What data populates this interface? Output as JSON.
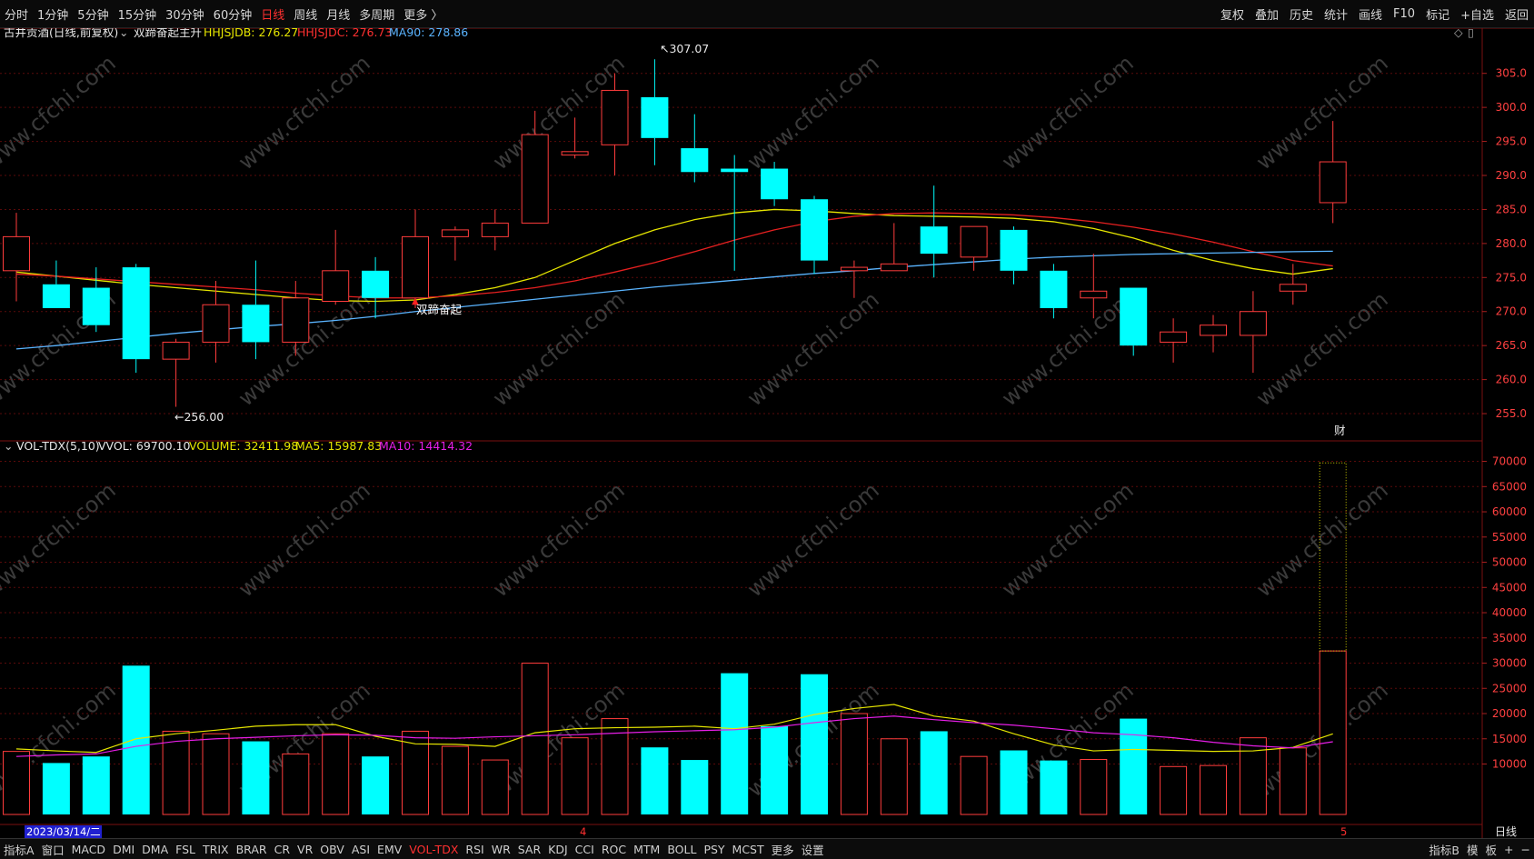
{
  "toolbar": {
    "periods": [
      "分时",
      "1分钟",
      "5分钟",
      "15分钟",
      "30分钟",
      "60分钟",
      "日线",
      "周线",
      "月线",
      "多周期",
      "更多 〉"
    ],
    "active_period": "日线",
    "right_items": [
      "复权",
      "叠加",
      "历史",
      "统计",
      "画线",
      "F10",
      "标记",
      "+自选",
      "返回"
    ]
  },
  "main_header": {
    "stock": "古井贡酒(日线,前复权)",
    "indicator": "双蹄奋起主升",
    "l1": "HHJSJDB: 276.27",
    "l2": "HHJSJDC: 276.73",
    "l3": "MA90: 278.86"
  },
  "vol_header": {
    "name": "VOL-TDX(5,10)",
    "vvol": "VVOL: 69700.10",
    "volume": "VOLUME: 32411.98",
    "ma5": "MA5: 15987.83",
    "ma10": "MA10: 14414.32"
  },
  "annotations": {
    "high": "307.07",
    "low": "256.00",
    "signal": "双蹄奋起",
    "cai": "财",
    "date": "2023/03/14/二",
    "m4": "4",
    "m5": "5",
    "period_label": "日线"
  },
  "bottom": {
    "items": [
      "指标A",
      "窗口",
      "MACD",
      "DMI",
      "DMA",
      "FSL",
      "TRIX",
      "BRAR",
      "CR",
      "VR",
      "OBV",
      "ASI",
      "EMV",
      "VOL-TDX",
      "RSI",
      "WR",
      "SAR",
      "KDJ",
      "CCI",
      "ROC",
      "MTM",
      "BOLL",
      "PSY",
      "MCST",
      "更多",
      "设置"
    ],
    "active": "VOL-TDX",
    "right_items": [
      "指标B",
      "模",
      "板",
      "+",
      "−"
    ]
  },
  "watermark": "www.cfchi.com",
  "chart_data": [
    {
      "type": "candlestick",
      "title": "古井贡酒(日线,前复权)",
      "ylim": [
        253,
        307.5
      ],
      "yticks": [
        255,
        260,
        265,
        270,
        275,
        280,
        285,
        290,
        295,
        300,
        305
      ],
      "candles": [
        {
          "o": 276,
          "c": 281,
          "h": 284.5,
          "l": 271.5
        },
        {
          "o": 274,
          "c": 270.5,
          "h": 277.5,
          "l": 270.5
        },
        {
          "o": 273.5,
          "c": 268,
          "h": 276.5,
          "l": 267
        },
        {
          "o": 276.5,
          "c": 263,
          "h": 277,
          "l": 261
        },
        {
          "o": 263,
          "c": 265.5,
          "h": 266,
          "l": 256
        },
        {
          "o": 265.5,
          "c": 271,
          "h": 274.5,
          "l": 262.5
        },
        {
          "o": 271,
          "c": 265.5,
          "h": 277.5,
          "l": 263
        },
        {
          "o": 265.5,
          "c": 272,
          "h": 274.5,
          "l": 263.5
        },
        {
          "o": 271.5,
          "c": 276,
          "h": 282,
          "l": 271
        },
        {
          "o": 276,
          "c": 272,
          "h": 278,
          "l": 269
        },
        {
          "o": 272,
          "c": 281,
          "h": 285,
          "l": 270.5
        },
        {
          "o": 281,
          "c": 282,
          "h": 282.5,
          "l": 277.5
        },
        {
          "o": 281,
          "c": 283,
          "h": 285,
          "l": 279
        },
        {
          "o": 283,
          "c": 296,
          "h": 299.5,
          "l": 283
        },
        {
          "o": 293,
          "c": 293.5,
          "h": 298.5,
          "l": 292.5
        },
        {
          "o": 294.5,
          "c": 302.5,
          "h": 305,
          "l": 290
        },
        {
          "o": 301.5,
          "c": 295.5,
          "h": 307.07,
          "l": 291.5
        },
        {
          "o": 294,
          "c": 290.5,
          "h": 299,
          "l": 289
        },
        {
          "o": 291,
          "c": 290.5,
          "h": 293,
          "l": 276
        },
        {
          "o": 291,
          "c": 286.5,
          "h": 292,
          "l": 285.5
        },
        {
          "o": 286.5,
          "c": 277.5,
          "h": 287,
          "l": 275.5
        },
        {
          "o": 276,
          "c": 276.5,
          "h": 277.5,
          "l": 272
        },
        {
          "o": 276,
          "c": 277,
          "h": 283,
          "l": 276
        },
        {
          "o": 282.5,
          "c": 278.5,
          "h": 288.5,
          "l": 275
        },
        {
          "o": 278,
          "c": 282.5,
          "h": 282.5,
          "l": 276
        },
        {
          "o": 282,
          "c": 276,
          "h": 282.5,
          "l": 274
        },
        {
          "o": 276,
          "c": 270.5,
          "h": 277,
          "l": 269
        },
        {
          "o": 272,
          "c": 273,
          "h": 278.5,
          "l": 269
        },
        {
          "o": 273.5,
          "c": 265,
          "h": 273.5,
          "l": 263.5
        },
        {
          "o": 265.5,
          "c": 267,
          "h": 269,
          "l": 262.5
        },
        {
          "o": 266.5,
          "c": 268,
          "h": 269.5,
          "l": 264
        },
        {
          "o": 266.5,
          "c": 270,
          "h": 273,
          "l": 261
        },
        {
          "o": 273,
          "c": 274,
          "h": 277,
          "l": 271
        },
        {
          "o": 286,
          "c": 292,
          "h": 298,
          "l": 283
        }
      ],
      "series": [
        {
          "name": "HHJSJDB",
          "color": "#e6e600",
          "values": [
            275.8,
            275.2,
            274.6,
            274,
            273.5,
            273,
            272.5,
            272,
            271.6,
            271.5,
            271.7,
            272.5,
            273.5,
            275,
            277.5,
            280,
            282,
            283.5,
            284.5,
            285,
            284.8,
            284.4,
            284.1,
            284,
            283.9,
            283.7,
            283.2,
            282.2,
            280.8,
            279,
            277.5,
            276.3,
            275.5,
            276.3
          ]
        },
        {
          "name": "HHJSJDC",
          "color": "#e62020",
          "values": [
            275.5,
            275.2,
            274.8,
            274.4,
            274,
            273.6,
            273.2,
            272.7,
            272.3,
            272,
            272,
            272.3,
            272.8,
            273.5,
            274.5,
            275.8,
            277.2,
            278.8,
            280.5,
            282,
            283.2,
            284,
            284.4,
            284.5,
            284.4,
            284.2,
            283.8,
            283.2,
            282.4,
            281.4,
            280.2,
            278.8,
            277.5,
            276.7
          ]
        },
        {
          "name": "MA90",
          "color": "#5ab4ff",
          "values": [
            264.5,
            265,
            265.6,
            266.2,
            266.8,
            267.3,
            267.8,
            268.2,
            268.7,
            269.3,
            270,
            270.6,
            271.2,
            271.8,
            272.4,
            273,
            273.6,
            274.1,
            274.6,
            275.1,
            275.6,
            276,
            276.5,
            276.9,
            277.3,
            277.7,
            278,
            278.2,
            278.4,
            278.5,
            278.6,
            278.7,
            278.8,
            278.86
          ]
        }
      ]
    },
    {
      "type": "bar",
      "title": "VOL-TDX(5,10)",
      "ylim": [
        0,
        71000
      ],
      "yticks": [
        10000,
        15000,
        20000,
        25000,
        30000,
        35000,
        40000,
        45000,
        50000,
        55000,
        60000,
        65000,
        70000
      ],
      "volumes": [
        12500,
        10200,
        11500,
        29500,
        16500,
        16000,
        14500,
        12000,
        16000,
        11500,
        16500,
        13500,
        10800,
        30000,
        15200,
        19000,
        13300,
        10800,
        28000,
        17500,
        27800,
        20000,
        15000,
        16500,
        11500,
        12700,
        10700,
        10900,
        19000,
        9500,
        9700,
        15200,
        13200,
        32411.98
      ],
      "vvol": 69700.1,
      "series": [
        {
          "name": "MA5",
          "color": "#e6e600",
          "values": [
            13000,
            12600,
            12300,
            15000,
            16000,
            16700,
            17500,
            17800,
            17800,
            15500,
            14000,
            13900,
            13500,
            16200,
            17000,
            17200,
            17300,
            17500,
            17000,
            17900,
            19800,
            21000,
            21800,
            19500,
            18500,
            16000,
            13800,
            12600,
            12900,
            12700,
            12500,
            12600,
            13300,
            15987.83
          ]
        },
        {
          "name": "MA10",
          "color": "#e61ee6",
          "values": [
            11500,
            11800,
            12000,
            13500,
            14500,
            15000,
            15300,
            15600,
            15800,
            15700,
            15200,
            15100,
            15400,
            15600,
            15800,
            16100,
            16400,
            16600,
            16800,
            17300,
            18200,
            19000,
            19500,
            18800,
            18200,
            17700,
            17000,
            16200,
            15800,
            15200,
            14300,
            13600,
            13200,
            14414.32
          ]
        }
      ]
    }
  ]
}
